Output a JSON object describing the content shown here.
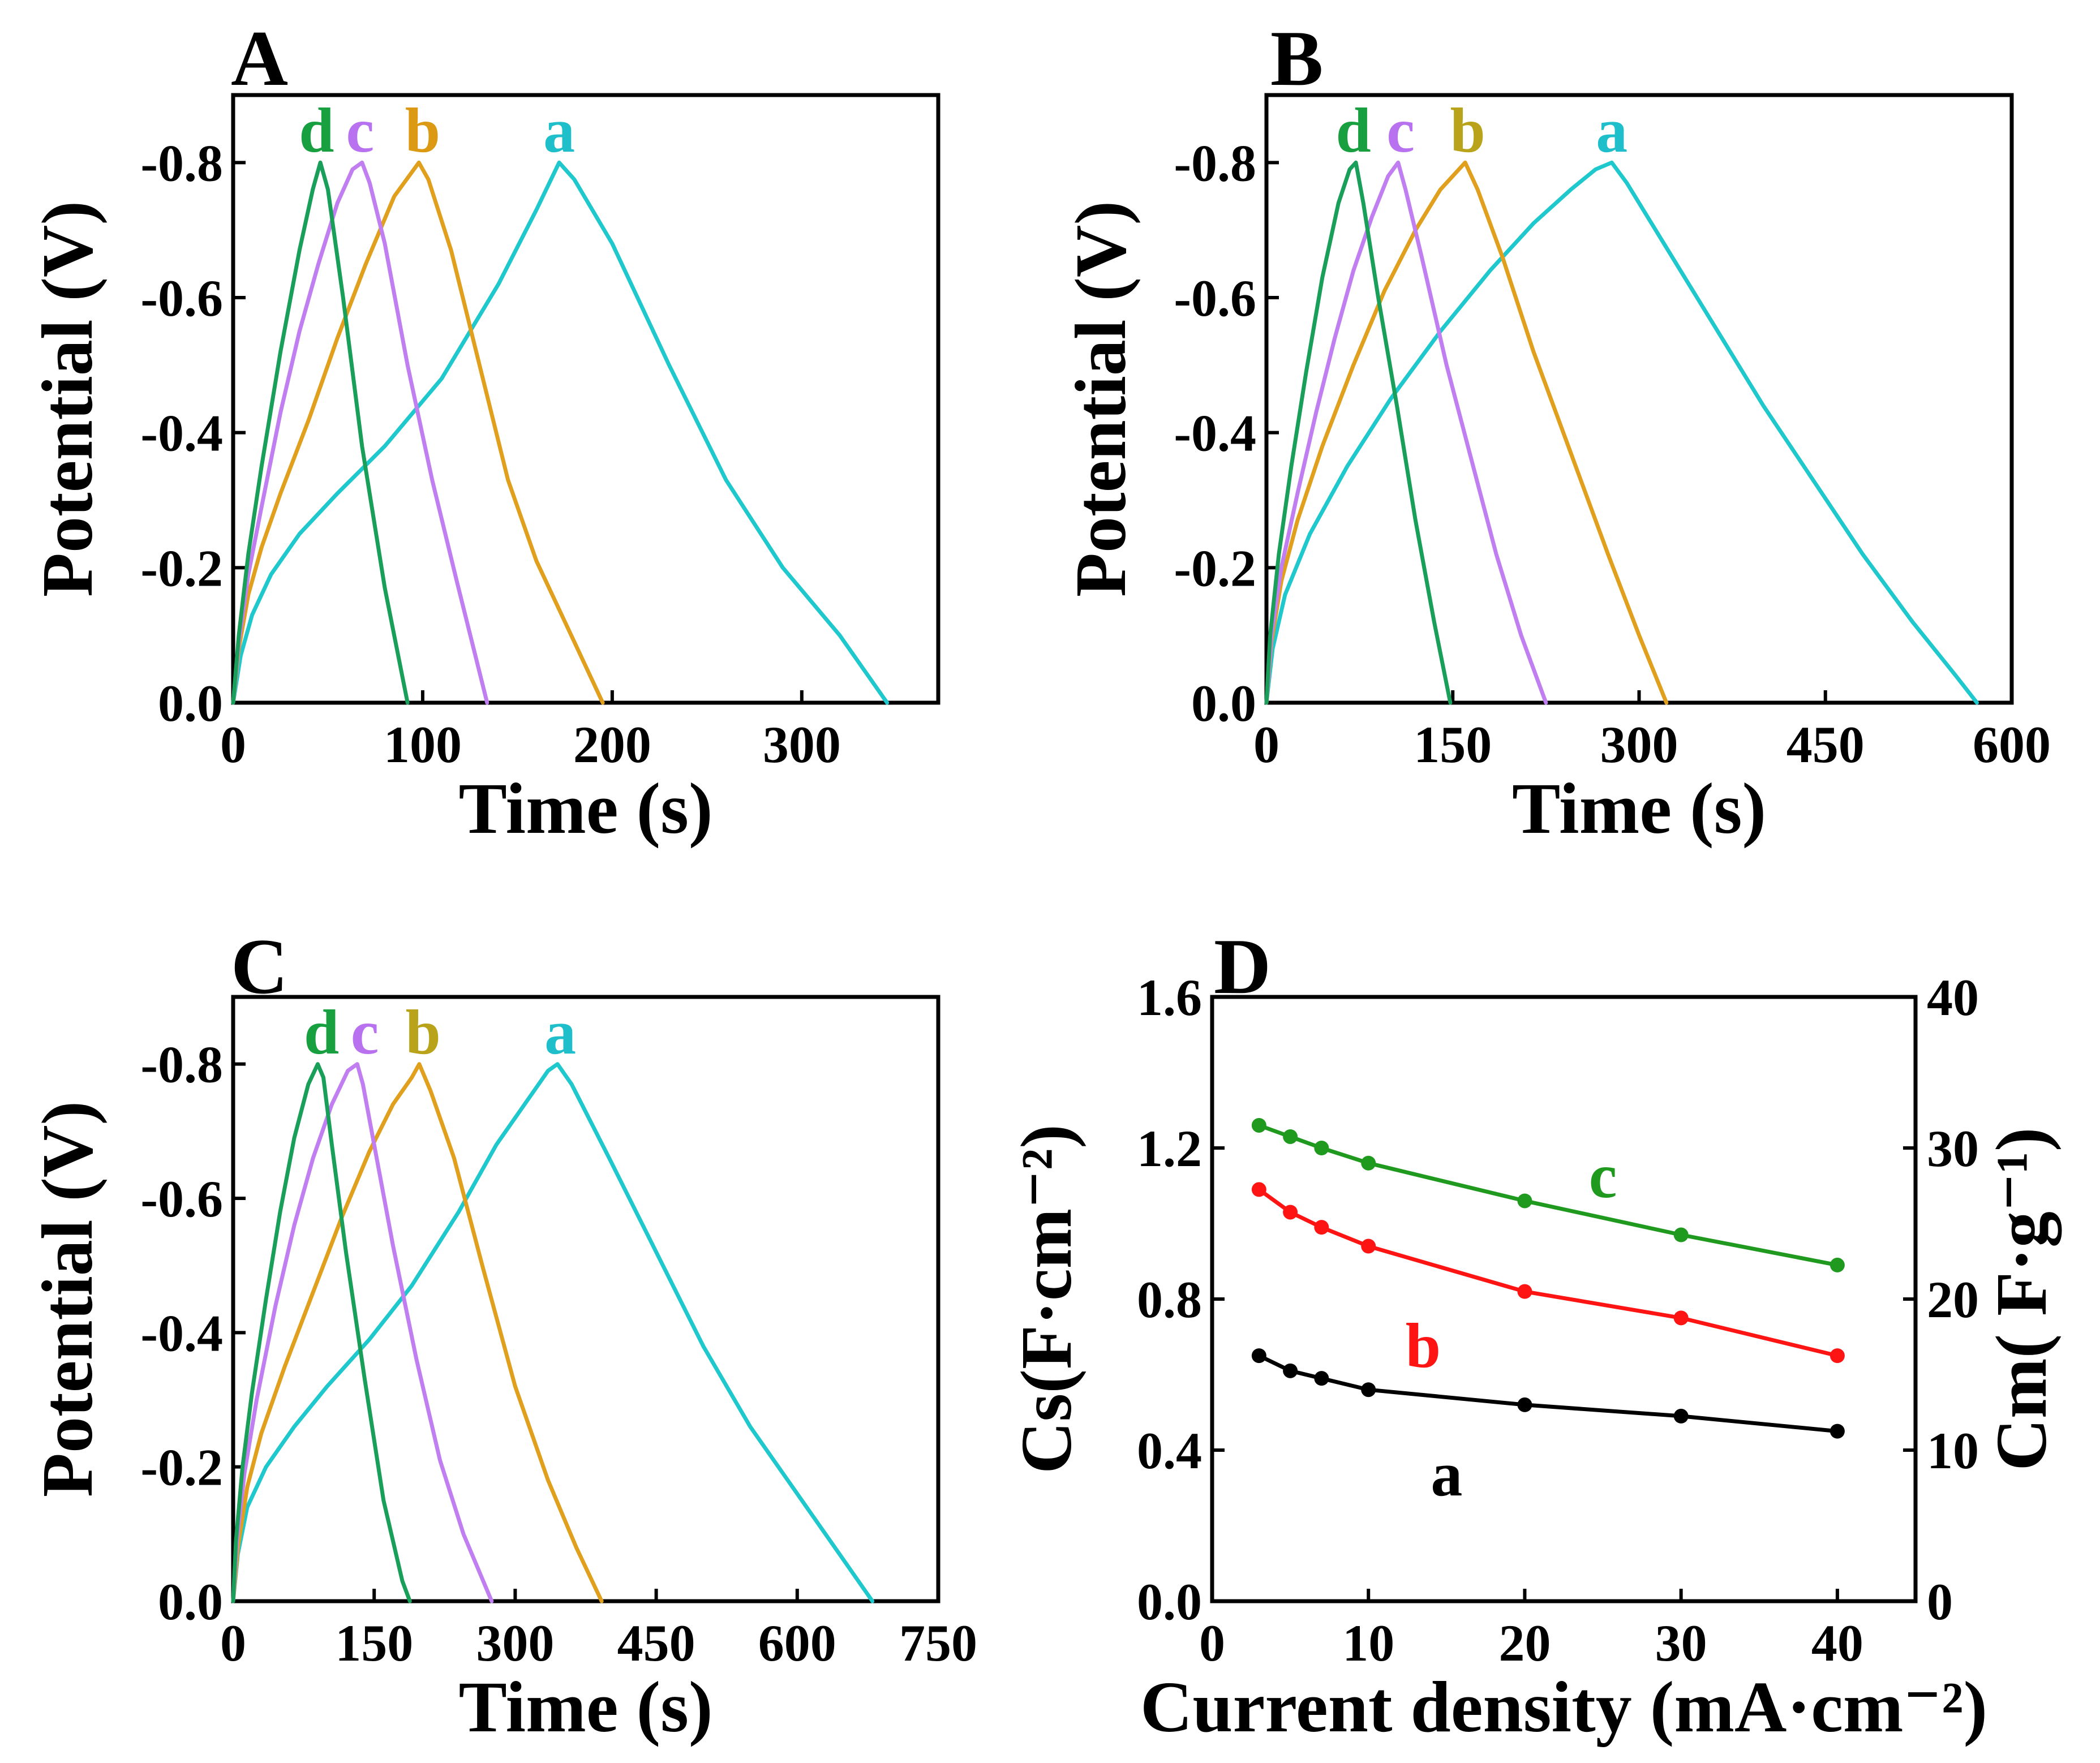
{
  "colors": {
    "axis": "#000000",
    "a": "#1fc8cc",
    "b": "#e0a01e",
    "c": "#c07ef0",
    "d": "#1a9f5a",
    "label_a": "#1ebfca",
    "label_b": "#dc9a14",
    "label_b_alt": "#b8a31a",
    "label_c": "#b872f0",
    "label_d": "#18a040",
    "d_a": "#000000",
    "d_b": "#ff1414",
    "d_c": "#1f9a1f"
  },
  "chart_data": [
    {
      "panel": "A",
      "type": "line",
      "xlabel": "Time (s)",
      "ylabel": "Potential (V)",
      "xlim": [
        0,
        372
      ],
      "ylim": [
        0,
        -0.9
      ],
      "xticks": [
        0,
        100,
        200,
        300
      ],
      "xtick_labels": [
        "0",
        "100",
        "200",
        "300"
      ],
      "yticks": [
        0,
        -0.2,
        -0.4,
        -0.6,
        -0.8
      ],
      "ytick_labels": [
        "0.0",
        "-0.2",
        "-0.4",
        "-0.6",
        "-0.8"
      ],
      "series": [
        {
          "name": "a",
          "color_key": "a",
          "label_color_key": "label_a",
          "x": [
            0,
            4,
            10,
            20,
            35,
            55,
            80,
            110,
            140,
            160,
            172,
            180,
            200,
            230,
            260,
            290,
            320,
            345
          ],
          "y": [
            0,
            -0.07,
            -0.13,
            -0.19,
            -0.25,
            -0.31,
            -0.38,
            -0.48,
            -0.62,
            -0.73,
            -0.8,
            -0.775,
            -0.68,
            -0.5,
            -0.33,
            -0.2,
            -0.1,
            0
          ]
        },
        {
          "name": "b",
          "color_key": "b",
          "label_color_key": "label_b",
          "x": [
            0,
            3,
            8,
            15,
            25,
            40,
            55,
            70,
            85,
            98,
            103,
            115,
            130,
            145,
            160,
            175,
            195
          ],
          "y": [
            0,
            -0.08,
            -0.16,
            -0.23,
            -0.31,
            -0.42,
            -0.54,
            -0.65,
            -0.75,
            -0.8,
            -0.775,
            -0.67,
            -0.5,
            -0.33,
            -0.21,
            -0.12,
            0
          ]
        },
        {
          "name": "c",
          "color_key": "c",
          "label_color_key": "label_c",
          "x": [
            0,
            3,
            8,
            15,
            25,
            35,
            45,
            55,
            63,
            68,
            72,
            80,
            92,
            105,
            118,
            134
          ],
          "y": [
            0,
            -0.09,
            -0.19,
            -0.29,
            -0.43,
            -0.55,
            -0.65,
            -0.74,
            -0.79,
            -0.8,
            -0.77,
            -0.68,
            -0.5,
            -0.33,
            -0.18,
            0
          ]
        },
        {
          "name": "d",
          "color_key": "d",
          "label_color_key": "label_d",
          "x": [
            0,
            3,
            8,
            15,
            25,
            35,
            42,
            46,
            50,
            58,
            68,
            80,
            92
          ],
          "y": [
            0,
            -0.1,
            -0.22,
            -0.35,
            -0.52,
            -0.67,
            -0.76,
            -0.8,
            -0.76,
            -0.6,
            -0.38,
            -0.17,
            0
          ]
        }
      ],
      "annotations": [
        {
          "text": "d",
          "x": 44,
          "color_key": "label_d"
        },
        {
          "text": "c",
          "x": 67,
          "color_key": "label_c"
        },
        {
          "text": "b",
          "x": 100,
          "color_key": "label_b"
        },
        {
          "text": "a",
          "x": 172,
          "color_key": "label_a"
        }
      ]
    },
    {
      "panel": "B",
      "type": "line",
      "xlabel": "Time (s)",
      "ylabel": "Potential (V)",
      "xlim": [
        0,
        600
      ],
      "ylim": [
        0,
        -0.9
      ],
      "xticks": [
        0,
        150,
        300,
        450,
        600
      ],
      "xtick_labels": [
        "0",
        "150",
        "300",
        "450",
        "600"
      ],
      "yticks": [
        0,
        -0.2,
        -0.4,
        -0.6,
        -0.8
      ],
      "ytick_labels": [
        "0.0",
        "-0.2",
        "-0.4",
        "-0.6",
        "-0.8"
      ],
      "series": [
        {
          "name": "a",
          "color_key": "a",
          "label_color_key": "label_a",
          "x": [
            0,
            5,
            15,
            35,
            65,
            100,
            140,
            180,
            215,
            245,
            265,
            278,
            290,
            320,
            360,
            400,
            440,
            480,
            520,
            555,
            572
          ],
          "y": [
            0,
            -0.08,
            -0.16,
            -0.25,
            -0.35,
            -0.45,
            -0.55,
            -0.64,
            -0.71,
            -0.76,
            -0.79,
            -0.8,
            -0.77,
            -0.68,
            -0.56,
            -0.44,
            -0.33,
            -0.22,
            -0.12,
            -0.04,
            0
          ]
        },
        {
          "name": "b",
          "color_key": "b",
          "label_color_key": "label_b_alt",
          "x": [
            0,
            4,
            12,
            25,
            45,
            70,
            95,
            120,
            140,
            155,
            160,
            170,
            190,
            215,
            245,
            275,
            300,
            322
          ],
          "y": [
            0,
            -0.09,
            -0.18,
            -0.27,
            -0.38,
            -0.5,
            -0.61,
            -0.7,
            -0.76,
            -0.79,
            -0.8,
            -0.76,
            -0.66,
            -0.52,
            -0.37,
            -0.22,
            -0.1,
            0
          ]
        },
        {
          "name": "c",
          "color_key": "c",
          "label_color_key": "label_c",
          "x": [
            0,
            4,
            12,
            25,
            40,
            55,
            70,
            85,
            98,
            106,
            112,
            125,
            145,
            165,
            185,
            205,
            225
          ],
          "y": [
            0,
            -0.1,
            -0.2,
            -0.31,
            -0.43,
            -0.54,
            -0.64,
            -0.72,
            -0.78,
            -0.8,
            -0.76,
            -0.66,
            -0.5,
            -0.36,
            -0.22,
            -0.1,
            0
          ]
        },
        {
          "name": "d",
          "color_key": "d",
          "label_color_key": "label_d",
          "x": [
            0,
            3,
            10,
            20,
            32,
            45,
            58,
            67,
            72,
            78,
            90,
            105,
            120,
            135,
            148
          ],
          "y": [
            0,
            -0.1,
            -0.22,
            -0.35,
            -0.49,
            -0.63,
            -0.74,
            -0.79,
            -0.8,
            -0.74,
            -0.6,
            -0.44,
            -0.27,
            -0.12,
            0
          ]
        }
      ],
      "annotations": [
        {
          "text": "d",
          "x": 70,
          "color_key": "label_d"
        },
        {
          "text": "c",
          "x": 108,
          "color_key": "label_c"
        },
        {
          "text": "b",
          "x": 162,
          "color_key": "label_b_alt"
        },
        {
          "text": "a",
          "x": 278,
          "color_key": "label_a"
        }
      ]
    },
    {
      "panel": "C",
      "type": "line",
      "xlabel": "Time (s)",
      "ylabel": "Potential (V)",
      "xlim": [
        0,
        750
      ],
      "ylim": [
        0,
        -0.9
      ],
      "xticks": [
        0,
        150,
        300,
        450,
        600,
        750
      ],
      "xtick_labels": [
        "0",
        "150",
        "300",
        "450",
        "600",
        "750"
      ],
      "yticks": [
        0,
        -0.2,
        -0.4,
        -0.6,
        -0.8
      ],
      "ytick_labels": [
        "0.0",
        "-0.2",
        "-0.4",
        "-0.6",
        "-0.8"
      ],
      "series": [
        {
          "name": "a",
          "color_key": "a",
          "label_color_key": "label_a",
          "x": [
            0,
            5,
            15,
            35,
            65,
            100,
            145,
            190,
            240,
            280,
            315,
            335,
            345,
            360,
            400,
            450,
            500,
            550,
            600,
            650,
            680
          ],
          "y": [
            0,
            -0.07,
            -0.14,
            -0.2,
            -0.26,
            -0.32,
            -0.39,
            -0.47,
            -0.58,
            -0.68,
            -0.75,
            -0.79,
            -0.8,
            -0.77,
            -0.66,
            -0.52,
            -0.38,
            -0.26,
            -0.16,
            -0.06,
            0
          ]
        },
        {
          "name": "b",
          "color_key": "b",
          "label_color_key": "label_b_alt",
          "x": [
            0,
            5,
            15,
            30,
            55,
            85,
            115,
            145,
            170,
            190,
            198,
            210,
            235,
            265,
            300,
            335,
            365,
            392
          ],
          "y": [
            0,
            -0.08,
            -0.17,
            -0.25,
            -0.35,
            -0.46,
            -0.57,
            -0.67,
            -0.74,
            -0.78,
            -0.8,
            -0.76,
            -0.66,
            -0.5,
            -0.32,
            -0.18,
            -0.08,
            0
          ]
        },
        {
          "name": "c",
          "color_key": "c",
          "label_color_key": "label_c",
          "x": [
            0,
            4,
            12,
            25,
            45,
            65,
            85,
            105,
            122,
            132,
            138,
            150,
            170,
            195,
            220,
            245,
            275
          ],
          "y": [
            0,
            -0.09,
            -0.19,
            -0.3,
            -0.44,
            -0.56,
            -0.66,
            -0.74,
            -0.79,
            -0.8,
            -0.77,
            -0.68,
            -0.53,
            -0.36,
            -0.21,
            -0.1,
            0
          ]
        },
        {
          "name": "d",
          "color_key": "d",
          "label_color_key": "label_d",
          "x": [
            0,
            3,
            10,
            20,
            35,
            50,
            65,
            80,
            90,
            96,
            105,
            120,
            140,
            160,
            180,
            188
          ],
          "y": [
            0,
            -0.09,
            -0.2,
            -0.31,
            -0.45,
            -0.58,
            -0.69,
            -0.77,
            -0.8,
            -0.78,
            -0.68,
            -0.52,
            -0.33,
            -0.15,
            -0.03,
            0
          ]
        }
      ],
      "annotations": [
        {
          "text": "d",
          "x": 94,
          "color_key": "label_d"
        },
        {
          "text": "c",
          "x": 140,
          "color_key": "label_c"
        },
        {
          "text": "b",
          "x": 202,
          "color_key": "label_b_alt"
        },
        {
          "text": "a",
          "x": 348,
          "color_key": "label_a"
        }
      ]
    },
    {
      "panel": "D",
      "type": "line",
      "xlabel": "Current density (mA·cm⁻²)",
      "ylabel_left": "Cs(F·cm⁻²)",
      "ylabel_right": "Cm( F·g⁻¹)",
      "xlim": [
        0,
        45
      ],
      "ylim": [
        0,
        1.6
      ],
      "ylim_right": [
        0,
        40
      ],
      "xticks": [
        0,
        10,
        20,
        30,
        40
      ],
      "xtick_labels": [
        "0",
        "10",
        "20",
        "30",
        "40"
      ],
      "yticks": [
        0,
        0.4,
        0.8,
        1.2,
        1.6
      ],
      "ytick_labels": [
        "0.0",
        "0.4",
        "0.8",
        "1.2",
        "1.6"
      ],
      "yticks_right": [
        0,
        10,
        20,
        30,
        40
      ],
      "ytick_labels_right": [
        "0",
        "10",
        "20",
        "30",
        "40"
      ],
      "series": [
        {
          "name": "a",
          "color_key": "d_a",
          "x": [
            3,
            5,
            7,
            10,
            20,
            30,
            40
          ],
          "y": [
            0.65,
            0.61,
            0.59,
            0.56,
            0.52,
            0.49,
            0.45
          ]
        },
        {
          "name": "b",
          "color_key": "d_b",
          "x": [
            3,
            5,
            7,
            10,
            20,
            30,
            40
          ],
          "y": [
            1.09,
            1.03,
            0.99,
            0.94,
            0.82,
            0.75,
            0.65
          ]
        },
        {
          "name": "c",
          "color_key": "d_c",
          "x": [
            3,
            5,
            7,
            10,
            20,
            30,
            40
          ],
          "y": [
            1.26,
            1.23,
            1.2,
            1.16,
            1.06,
            0.97,
            0.89
          ]
        }
      ],
      "annotations": [
        {
          "text": "c",
          "x": 25,
          "y": 1.07,
          "color_key": "d_c"
        },
        {
          "text": "b",
          "x": 13.5,
          "y": 0.62,
          "color_key": "d_b"
        },
        {
          "text": "a",
          "x": 15,
          "y": 0.28,
          "color_key": "d_a"
        }
      ]
    }
  ]
}
